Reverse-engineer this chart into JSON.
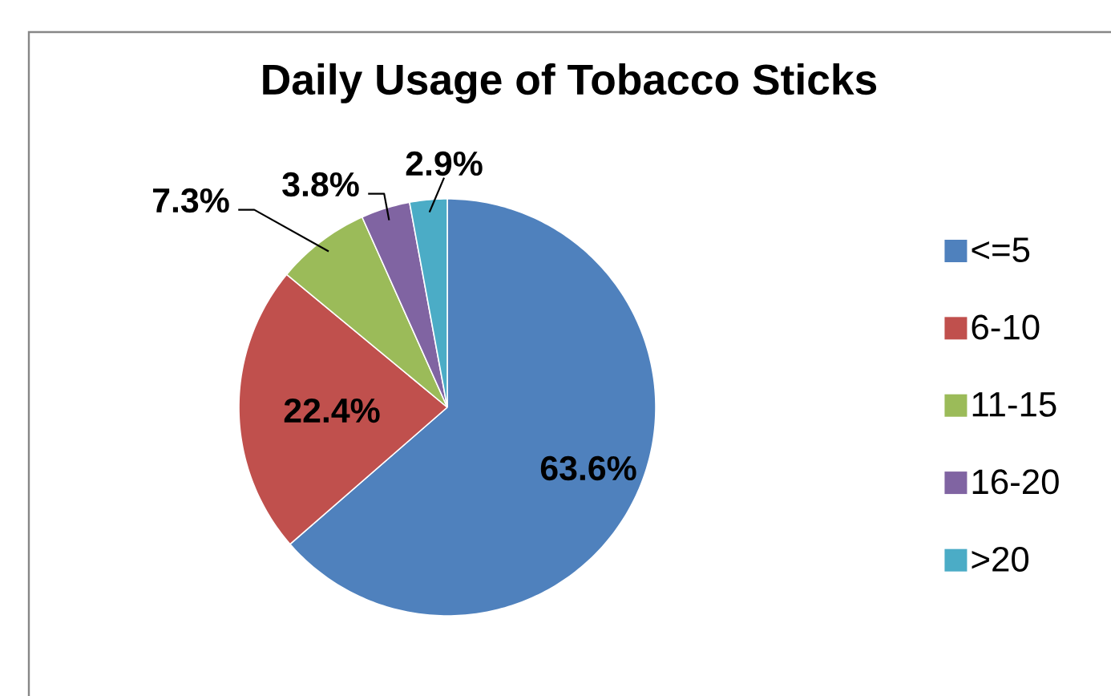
{
  "chart_data": {
    "type": "pie",
    "title": "Daily Usage of Tobacco Sticks",
    "categories": [
      "<=5",
      "6-10",
      "11-15",
      "16-20",
      ">20"
    ],
    "values": [
      63.6,
      22.4,
      7.3,
      3.8,
      2.9
    ],
    "colors": [
      "#4f81bd",
      "#c0504d",
      "#9bbb59",
      "#8064a2",
      "#4bacc6"
    ],
    "value_labels": [
      "63.6%",
      "22.4%",
      "7.3%",
      "3.8%",
      "2.9%"
    ],
    "legend": "right"
  }
}
